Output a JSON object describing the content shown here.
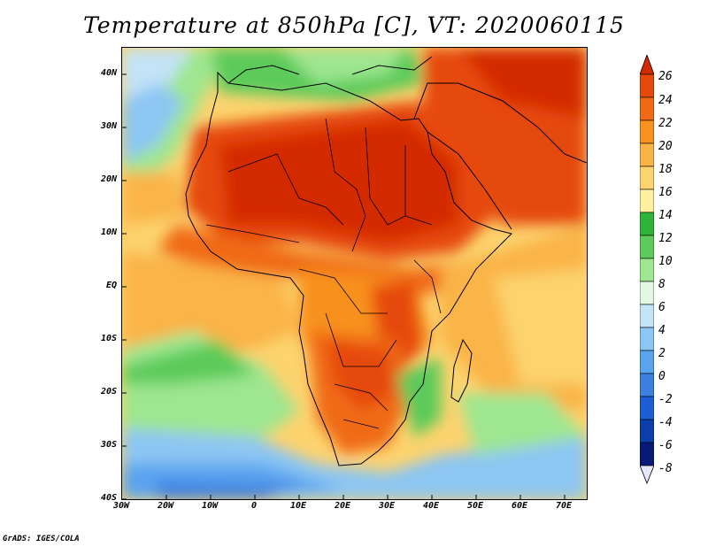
{
  "title": "Temperature at 850hPa [C], VT: 2020060115",
  "footer": "GrADS: IGES/COLA",
  "map": {
    "lon_range": [
      -30,
      75
    ],
    "lat_range": [
      -40,
      45
    ],
    "lat_labels": [
      "40N",
      "30N",
      "20N",
      "10N",
      "EQ",
      "10S",
      "20S",
      "30S",
      "40S"
    ],
    "lat_values": [
      40,
      30,
      20,
      10,
      0,
      -10,
      -20,
      -30,
      -40
    ],
    "lon_labels": [
      "30W",
      "20W",
      "10W",
      "0",
      "10E",
      "20E",
      "30E",
      "40E",
      "50E",
      "60E",
      "70E"
    ],
    "lon_values": [
      -30,
      -20,
      -10,
      0,
      10,
      20,
      30,
      40,
      50,
      60,
      70
    ]
  },
  "colorbar": {
    "labels": [
      "26",
      "24",
      "22",
      "20",
      "18",
      "16",
      "14",
      "12",
      "10",
      "8",
      "6",
      "4",
      "2",
      "0",
      "-2",
      "-4",
      "-6",
      "-8"
    ],
    "colors": [
      "#d42a00",
      "#e64a0a",
      "#f06a14",
      "#f8911e",
      "#fab446",
      "#fcd36e",
      "#fff0a0",
      "#2fb43a",
      "#5ccb5a",
      "#9ee690",
      "#e3f8e3",
      "#c3e3f8",
      "#8cc6f3",
      "#5aa3ef",
      "#3c7fe0",
      "#1e5ed4",
      "#0c3dad",
      "#071a7a",
      "#e6e6ff"
    ]
  }
}
